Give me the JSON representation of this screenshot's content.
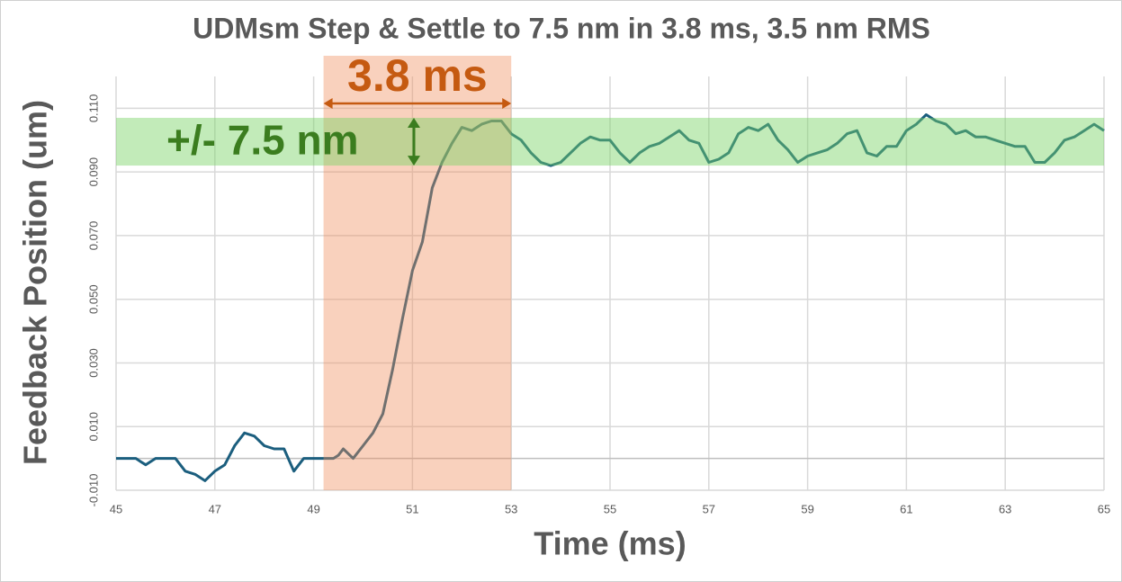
{
  "chart_data": {
    "type": "line",
    "title": "UDMsm Step & Settle to 7.5 nm in 3.8 ms, 3.5 nm RMS",
    "x_label": "Time (ms)",
    "y_label": "Feedback Position (um)",
    "xlim": [
      45,
      65
    ],
    "xticks": [
      45,
      47,
      49,
      51,
      53,
      55,
      57,
      59,
      61,
      63,
      65
    ],
    "ylim": [
      -0.01,
      0.12
    ],
    "yticks": [
      {
        "value": -0.01,
        "label": "-0.010"
      },
      {
        "value": 0.01,
        "label": "0.010"
      },
      {
        "value": 0.03,
        "label": "0.030"
      },
      {
        "value": 0.05,
        "label": "0.050"
      },
      {
        "value": 0.07,
        "label": "0.070"
      },
      {
        "value": 0.09,
        "label": "0.090"
      },
      {
        "value": 0.11,
        "label": "0.110"
      }
    ],
    "grid": true,
    "x": [
      45.0,
      45.4,
      45.5,
      45.6,
      45.8,
      46.0,
      46.2,
      46.4,
      46.6,
      46.8,
      47.0,
      47.2,
      47.4,
      47.6,
      47.8,
      48.0,
      48.2,
      48.4,
      48.6,
      48.8,
      49.0,
      49.2,
      49.4,
      49.5,
      49.6,
      49.8,
      50.0,
      50.2,
      50.4,
      50.6,
      50.8,
      51.0,
      51.2,
      51.4,
      51.6,
      51.8,
      52.0,
      52.2,
      52.4,
      52.6,
      52.8,
      53.0,
      53.2,
      53.4,
      53.6,
      53.8,
      54.0,
      54.2,
      54.4,
      54.6,
      54.8,
      55.0,
      55.2,
      55.4,
      55.6,
      55.8,
      56.0,
      56.2,
      56.4,
      56.6,
      56.8,
      57.0,
      57.2,
      57.4,
      57.6,
      57.8,
      58.0,
      58.2,
      58.4,
      58.6,
      58.8,
      59.0,
      59.2,
      59.4,
      59.6,
      59.8,
      60.0,
      60.2,
      60.4,
      60.6,
      60.8,
      61.0,
      61.2,
      61.4,
      61.6,
      61.8,
      62.0,
      62.2,
      62.4,
      62.6,
      62.8,
      63.0,
      63.2,
      63.4,
      63.6,
      63.8,
      64.0,
      64.2,
      64.4,
      64.6,
      64.8,
      65.0
    ],
    "series": [
      {
        "color": "#1b5e7e",
        "values": [
          0.0,
          0.0,
          -0.001,
          -0.002,
          0.0,
          0.0,
          0.0,
          -0.004,
          -0.005,
          -0.007,
          -0.004,
          -0.002,
          0.004,
          0.008,
          0.007,
          0.004,
          0.003,
          0.003,
          -0.004,
          0.0,
          0.0,
          0.0,
          0.0,
          0.001,
          0.003,
          0.0,
          0.004,
          0.008,
          0.014,
          0.028,
          0.044,
          0.059,
          0.068,
          0.085,
          0.093,
          0.099,
          0.104,
          0.103,
          0.105,
          0.106,
          0.106,
          0.102,
          0.1,
          0.096,
          0.093,
          0.092,
          0.093,
          0.096,
          0.099,
          0.101,
          0.1,
          0.1,
          0.096,
          0.093,
          0.096,
          0.098,
          0.099,
          0.101,
          0.103,
          0.1,
          0.099,
          0.093,
          0.094,
          0.096,
          0.102,
          0.104,
          0.103,
          0.105,
          0.1,
          0.097,
          0.093,
          0.095,
          0.096,
          0.097,
          0.099,
          0.102,
          0.103,
          0.096,
          0.095,
          0.098,
          0.098,
          0.103,
          0.105,
          0.108,
          0.106,
          0.105,
          0.102,
          0.103,
          0.101,
          0.101,
          0.1,
          0.099,
          0.098,
          0.098,
          0.093,
          0.093,
          0.096,
          0.1,
          0.101,
          0.103,
          0.105,
          0.103
        ]
      }
    ],
    "settle_band": {
      "xmin": 49.2,
      "xmax": 53.0,
      "color": "rgba(240,140,90,0.4)",
      "label": "3.8 ms",
      "label_color": "#c55a11"
    },
    "tolerance_band": {
      "ymin": 0.092,
      "ymax": 0.107,
      "color": "rgba(120,210,100,0.45)",
      "label": "+/- 7.5 nm",
      "label_color": "#3b7d1f"
    }
  }
}
